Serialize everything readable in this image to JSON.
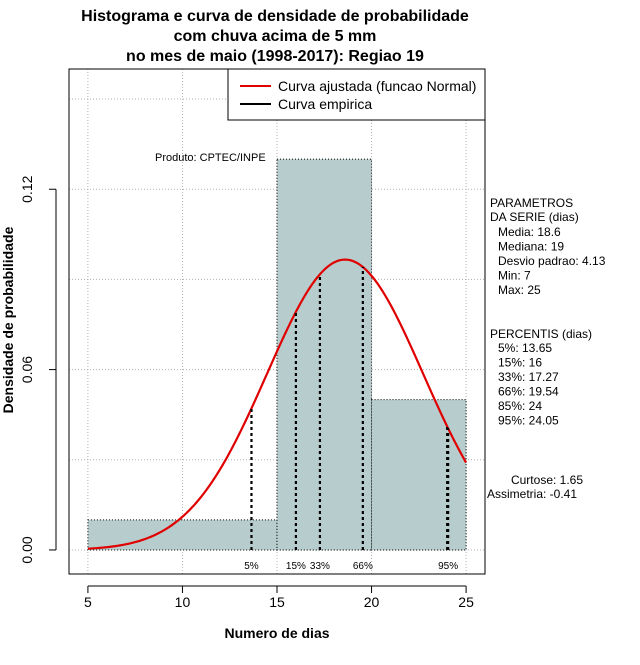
{
  "title_lines": [
    "Histograma e curva de densidade de probabilidade",
    "com chuva acima de 5 mm",
    "no mes de maio (1998-2017): Regiao 19"
  ],
  "xlabel": "Numero de dias",
  "ylabel": "Densidade de probabilidade",
  "product_label": "Produto: CPTEC/INPE",
  "legend": {
    "items": [
      {
        "label": "Curva ajustada (funcao Normal)",
        "color": "#e00000"
      },
      {
        "label": "Curva empirica",
        "color": "#000000"
      }
    ]
  },
  "parametros": {
    "header": [
      "PARAMETROS",
      "DA SERIE (dias)"
    ],
    "lines": [
      "Media: 18.6",
      "Mediana: 19",
      "Desvio padrao: 4.13",
      "Min: 7",
      "Max: 25"
    ]
  },
  "percentis": {
    "header": "PERCENTIS (dias)",
    "lines": [
      "5%: 13.65",
      "15%: 16",
      "33%: 17.27",
      "66%: 19.54",
      "85%: 24",
      "95%: 24.05"
    ]
  },
  "extra": [
    "Curtose: 1.65",
    "Assimetria: -0.41"
  ],
  "colors": {
    "bar_fill": "#b7cdcd",
    "fitted_curve": "#e00000",
    "grid": "#b0b0b0"
  },
  "chart_data": {
    "type": "bar",
    "title": "Histograma e curva de densidade de probabilidade com chuva acima de 5 mm no mes de maio (1998-2017): Regiao 19",
    "xlabel": "Numero de dias",
    "ylabel": "Densidade de probabilidade",
    "xlim": [
      4,
      26
    ],
    "ylim": [
      -0.008,
      0.16
    ],
    "x_ticks": [
      5,
      10,
      15,
      20,
      25
    ],
    "y_ticks": [
      0.0,
      0.06,
      0.12
    ],
    "y_tick_labels": [
      "0.00",
      "0.06",
      "0.12"
    ],
    "grid": true,
    "legend_position": "top-right",
    "histogram": [
      {
        "x0": 5,
        "x1": 15,
        "density": 0.01
      },
      {
        "x0": 15,
        "x1": 20,
        "density": 0.13
      },
      {
        "x0": 20,
        "x1": 25,
        "density": 0.05
      }
    ],
    "fitted_normal": {
      "name": "Curva ajustada (funcao Normal)",
      "mean": 18.6,
      "sd": 4.13,
      "x_range": [
        5,
        25
      ]
    },
    "percentile_lines": [
      {
        "label": "5%",
        "x": 13.65
      },
      {
        "label": "15%",
        "x": 16
      },
      {
        "label": "33%",
        "x": 17.27
      },
      {
        "label": "66%",
        "x": 19.54
      },
      {
        "label": "85%",
        "x": 24
      },
      {
        "label": "95%",
        "x": 24.05
      }
    ],
    "percentile_bottom_labels": [
      {
        "text": "5%",
        "x": 13.65
      },
      {
        "text": "15%",
        "x": 16
      },
      {
        "text": "33%",
        "x": 17.27
      },
      {
        "text": "66%",
        "x": 19.54
      },
      {
        "text": "95%",
        "x": 24.05
      }
    ]
  }
}
